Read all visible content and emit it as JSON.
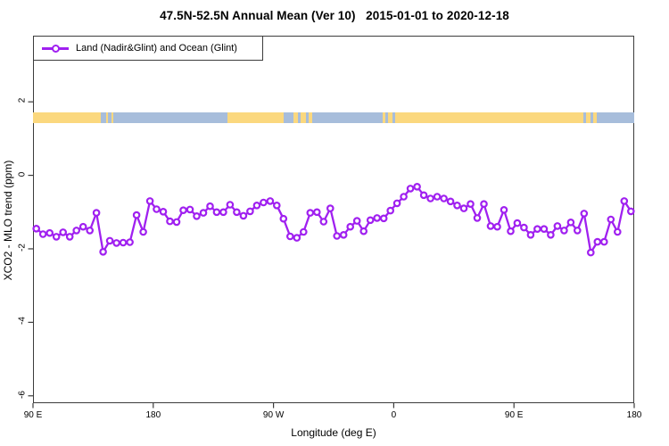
{
  "title": "47.5N-52.5N Annual Mean (Ver 10)   2015-01-01 to 2020-12-18",
  "legend": {
    "label": "Land (Nadir&Glint) and Ocean (Glint)"
  },
  "axes": {
    "x_label": "Longitude (deg E)",
    "y_label": "XCO2 - MLO trend (ppm)"
  },
  "colors": {
    "series": "#A020F0",
    "band_land": "#FBD87E",
    "band_ocean": "#A7BDDB",
    "axis": "#3c3c3c"
  },
  "chart_data": {
    "type": "line",
    "title": "47.5N-52.5N Annual Mean (Ver 10)   2015-01-01 to 2020-12-18",
    "xlabel": "Longitude (deg E)",
    "ylabel": "XCO2 - MLO trend (ppm)",
    "xlim": [
      90,
      540
    ],
    "ylim": [
      -6.2,
      3.8
    ],
    "grid": false,
    "legend_position": "top-left",
    "x_ticks": [
      {
        "lon": 90,
        "label": "90 E"
      },
      {
        "lon": 180,
        "label": "180"
      },
      {
        "lon": 270,
        "label": "90 W"
      },
      {
        "lon": 360,
        "label": "0"
      },
      {
        "lon": 450,
        "label": "90 E"
      },
      {
        "lon": 540,
        "label": "180"
      }
    ],
    "y_ticks": [
      {
        "value": 2,
        "label": "2"
      },
      {
        "value": 0,
        "label": "0"
      },
      {
        "value": -2,
        "label": "-2"
      },
      {
        "value": -4,
        "label": "-4"
      },
      {
        "value": -6,
        "label": "-6"
      }
    ],
    "series": [
      {
        "name": "Land (Nadir&Glint) and Ocean (Glint)",
        "marker": "open-circle",
        "x": [
          92.5,
          97.5,
          102.5,
          107.5,
          112.5,
          117.5,
          122.5,
          127.5,
          132.5,
          137.5,
          142.5,
          147.5,
          152.5,
          157.5,
          162.5,
          167.5,
          172.5,
          177.5,
          182.5,
          187.5,
          192.5,
          197.5,
          202.5,
          207.5,
          212.5,
          217.5,
          222.5,
          227.5,
          232.5,
          237.5,
          242.5,
          247.5,
          252.5,
          257.5,
          262.5,
          267.5,
          272.5,
          277.5,
          282.5,
          287.5,
          292.5,
          297.5,
          302.5,
          307.5,
          312.5,
          317.5,
          322.5,
          327.5,
          332.5,
          337.5,
          342.5,
          347.5,
          352.5,
          357.5,
          362.5,
          367.5,
          372.5,
          377.5,
          382.5,
          387.5,
          392.5,
          397.5,
          402.5,
          407.5,
          412.5,
          417.5,
          422.5,
          427.5,
          432.5,
          437.5,
          442.5,
          447.5,
          452.5,
          457.5,
          462.5,
          467.5,
          472.5,
          477.5,
          482.5,
          487.5,
          492.5,
          497.5,
          502.5,
          507.5,
          512.5,
          517.5,
          522.5,
          527.5,
          532.5,
          537.5
        ],
        "values": [
          -1.45,
          -1.6,
          -1.57,
          -1.67,
          -1.55,
          -1.67,
          -1.5,
          -1.4,
          -1.5,
          -1.02,
          -2.08,
          -1.78,
          -1.84,
          -1.83,
          -1.82,
          -1.08,
          -1.54,
          -0.7,
          -0.92,
          -0.99,
          -1.25,
          -1.27,
          -0.95,
          -0.93,
          -1.11,
          -1.02,
          -0.84,
          -1.0,
          -1.0,
          -0.8,
          -1.0,
          -1.1,
          -0.98,
          -0.82,
          -0.74,
          -0.7,
          -0.82,
          -1.18,
          -1.66,
          -1.7,
          -1.54,
          -1.02,
          -1.0,
          -1.26,
          -0.9,
          -1.65,
          -1.62,
          -1.4,
          -1.24,
          -1.52,
          -1.22,
          -1.16,
          -1.17,
          -0.96,
          -0.76,
          -0.58,
          -0.36,
          -0.31,
          -0.54,
          -0.63,
          -0.58,
          -0.63,
          -0.71,
          -0.82,
          -0.9,
          -0.78,
          -1.16,
          -0.78,
          -1.38,
          -1.4,
          -0.94,
          -1.52,
          -1.3,
          -1.42,
          -1.62,
          -1.46,
          -1.46,
          -1.62,
          -1.38,
          -1.5,
          -1.28,
          -1.5,
          -1.04,
          -2.1,
          -1.81,
          -1.81,
          -1.2,
          -1.54,
          -0.7,
          -0.98
        ]
      }
    ],
    "surface_band": {
      "description": "land/ocean surface-type strip",
      "value_top": 1.71,
      "value_bottom": 1.42,
      "segments": [
        {
          "from": 90,
          "to": 141,
          "type": "land"
        },
        {
          "from": 141,
          "to": 144.5,
          "type": "ocean"
        },
        {
          "from": 144.5,
          "to": 146,
          "type": "land"
        },
        {
          "from": 146,
          "to": 148.5,
          "type": "ocean"
        },
        {
          "from": 148.5,
          "to": 150,
          "type": "land"
        },
        {
          "from": 150,
          "to": 235.5,
          "type": "ocean"
        },
        {
          "from": 235.5,
          "to": 277.5,
          "type": "land"
        },
        {
          "from": 277.5,
          "to": 285,
          "type": "ocean"
        },
        {
          "from": 285,
          "to": 288,
          "type": "land"
        },
        {
          "from": 288,
          "to": 290,
          "type": "ocean"
        },
        {
          "from": 290,
          "to": 294,
          "type": "land"
        },
        {
          "from": 294,
          "to": 296,
          "type": "ocean"
        },
        {
          "from": 296,
          "to": 299,
          "type": "land"
        },
        {
          "from": 299,
          "to": 352,
          "type": "ocean"
        },
        {
          "from": 352,
          "to": 354,
          "type": "land"
        },
        {
          "from": 354,
          "to": 356,
          "type": "ocean"
        },
        {
          "from": 356,
          "to": 359,
          "type": "land"
        },
        {
          "from": 359,
          "to": 361,
          "type": "ocean"
        },
        {
          "from": 361,
          "to": 502,
          "type": "land"
        },
        {
          "from": 502,
          "to": 504,
          "type": "ocean"
        },
        {
          "from": 504,
          "to": 507,
          "type": "land"
        },
        {
          "from": 507,
          "to": 509,
          "type": "ocean"
        },
        {
          "from": 509,
          "to": 512,
          "type": "land"
        },
        {
          "from": 512,
          "to": 540,
          "type": "ocean"
        }
      ]
    }
  }
}
